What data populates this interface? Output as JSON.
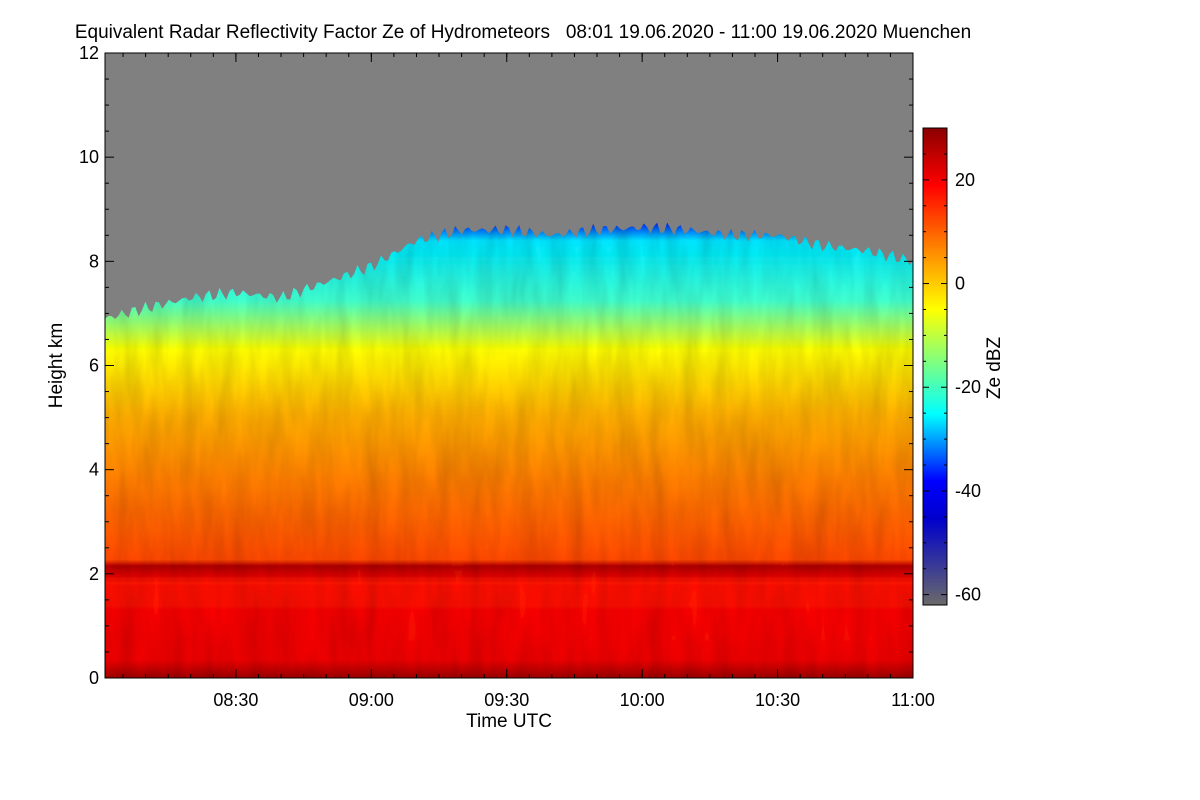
{
  "chart_data": {
    "type": "heatmap",
    "title": "Equivalent Radar Reflectivity Factor Ze of Hydrometeors   08:01 19.06.2020 - 11:00 19.06.2020 Muenchen",
    "xlabel": "Time UTC",
    "ylabel": "Height km",
    "colorbar_label": "Ze dBZ",
    "x_range_minutes": [
      481,
      660
    ],
    "x_ticks": [
      {
        "label": "08:30",
        "value": 510
      },
      {
        "label": "09:00",
        "value": 540
      },
      {
        "label": "09:30",
        "value": 570
      },
      {
        "label": "10:00",
        "value": 600
      },
      {
        "label": "10:30",
        "value": 630
      },
      {
        "label": "11:00",
        "value": 660
      }
    ],
    "ylim": [
      0,
      12
    ],
    "y_ticks": [
      0,
      2,
      4,
      6,
      8,
      10,
      12
    ],
    "colorbar_range": [
      -62,
      30
    ],
    "colorbar_ticks": [
      20,
      0,
      -20,
      -40,
      -60
    ],
    "colormap": [
      "#5f5f5f",
      "#0000cc",
      "#0000ff",
      "#00ffff",
      "#ffff00",
      "#ff8c00",
      "#ff0000",
      "#8b0000"
    ],
    "no_signal_color": "#808080",
    "echo_top_km": [
      {
        "t": 481,
        "h": 6.9
      },
      {
        "t": 490,
        "h": 7.1
      },
      {
        "t": 500,
        "h": 7.3
      },
      {
        "t": 510,
        "h": 7.4
      },
      {
        "t": 520,
        "h": 7.3
      },
      {
        "t": 530,
        "h": 7.6
      },
      {
        "t": 540,
        "h": 7.9
      },
      {
        "t": 550,
        "h": 8.4
      },
      {
        "t": 560,
        "h": 8.6
      },
      {
        "t": 570,
        "h": 8.6
      },
      {
        "t": 580,
        "h": 8.5
      },
      {
        "t": 590,
        "h": 8.6
      },
      {
        "t": 600,
        "h": 8.65
      },
      {
        "t": 610,
        "h": 8.6
      },
      {
        "t": 620,
        "h": 8.5
      },
      {
        "t": 630,
        "h": 8.5
      },
      {
        "t": 640,
        "h": 8.3
      },
      {
        "t": 650,
        "h": 8.2
      },
      {
        "t": 660,
        "h": 8.0
      }
    ],
    "melting_layer_km": 2.0
  }
}
